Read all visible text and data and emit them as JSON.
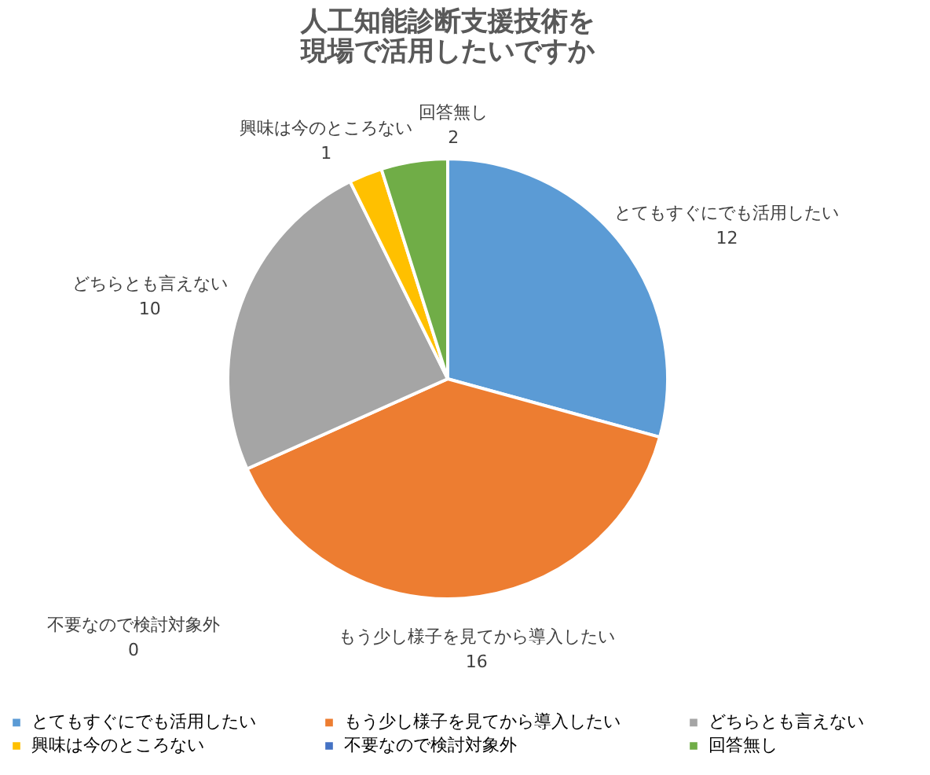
{
  "chart_data": {
    "type": "pie",
    "title": "人工知能診断支援技術を現場で活用したいですか",
    "categories": [
      "とてもすぐにでも活用したい",
      "もう少し様子を見てから導入したい",
      "どちらとも言えない",
      "興味は今のところない",
      "不要なので検討対象外",
      "回答無し"
    ],
    "values": [
      12,
      16,
      10,
      1,
      0,
      2
    ],
    "colors": [
      "#5b9bd5",
      "#ed7d31",
      "#a5a5a5",
      "#ffc000",
      "#4472c4",
      "#70ad47"
    ],
    "value_labels": [
      "12",
      "16",
      "10",
      "1",
      "0",
      "2"
    ],
    "legend": "bottom"
  }
}
